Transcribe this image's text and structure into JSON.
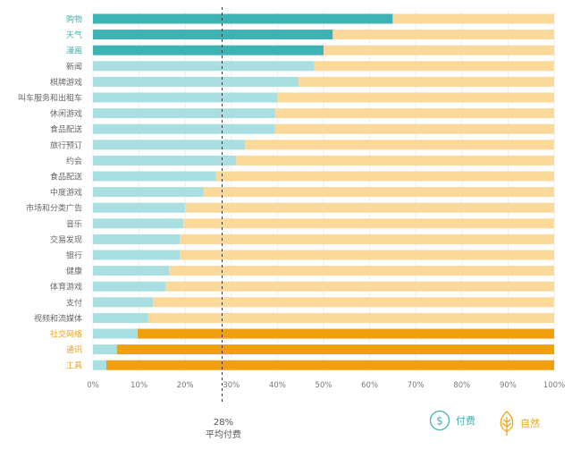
{
  "chart_data": {
    "type": "bar",
    "stacked": true,
    "orientation": "horizontal",
    "categories": [
      "购物",
      "天气",
      "漫画",
      "新闻",
      "棋牌游戏",
      "叫车服务和出租车",
      "休闲游戏",
      "食品配送",
      "旅行预订",
      "约会",
      "食品配送",
      "中度游戏",
      "市场和分类广告",
      "音乐",
      "交易发现",
      "银行",
      "健康",
      "体育游戏",
      "支付",
      "视频和流媒体",
      "社交网络",
      "通讯",
      "工具"
    ],
    "series": [
      {
        "name": "付费",
        "values": [
          65,
          52,
          50,
          48,
          44.6,
          40,
          39.5,
          39.5,
          33,
          31,
          26.7,
          24,
          20,
          19.6,
          18.8,
          18.8,
          16.5,
          15.7,
          13,
          12,
          9.7,
          5.2,
          2.9
        ]
      },
      {
        "name": "自然",
        "values": [
          35,
          48,
          50,
          52,
          55.4,
          60,
          60.5,
          60.5,
          67,
          69,
          73.3,
          76,
          80,
          80.4,
          81.2,
          81.2,
          83.5,
          84.3,
          87,
          88,
          90.3,
          94.8,
          97.1
        ]
      }
    ],
    "highlight_paid": [
      "购物",
      "天气",
      "漫画"
    ],
    "highlight_organic": [
      "社交网络",
      "通讯",
      "工具"
    ],
    "xlim": [
      0,
      100
    ],
    "xticks": [
      "0%",
      "10%",
      "20%",
      "30%",
      "40%",
      "50%",
      "60%",
      "70%",
      "80%",
      "90%",
      "100%"
    ],
    "reference_line": {
      "value": 28,
      "value_label": "28%",
      "label": "平均付费"
    },
    "legend_position": "bottom-right",
    "grid": true,
    "colors": {
      "paid_strong": "#3db3b3",
      "paid_light": "#a9dfe0",
      "organic_strong": "#f0a00f",
      "organic_light": "#fbd99a"
    }
  },
  "legend": {
    "paid": "付费",
    "organic": "自然",
    "paid_icon": "dollar-circle-icon",
    "organic_icon": "leaf-icon"
  }
}
